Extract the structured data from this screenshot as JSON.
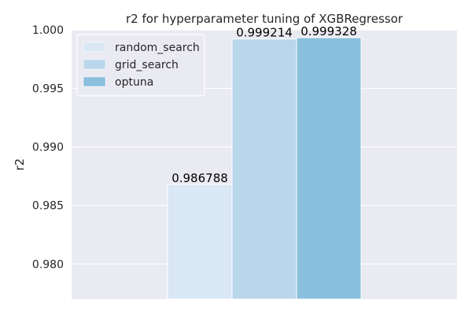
{
  "chart_data": {
    "type": "bar",
    "title": "r2 for hyperparameter tuning of XGBRegressor",
    "xlabel": "",
    "ylabel": "r2",
    "ylim": [
      0.977,
      1.0
    ],
    "yticks": [
      0.98,
      0.985,
      0.99,
      0.995,
      1.0
    ],
    "ytick_labels": [
      "0.980",
      "0.985",
      "0.990",
      "0.995",
      "1.000"
    ],
    "grid": true,
    "legend_position": "upper-left",
    "background": "#eaeaf2",
    "series": [
      {
        "name": "random_search",
        "value": 0.986788,
        "label": "0.986788",
        "color": "#dae7f4"
      },
      {
        "name": "grid_search",
        "value": 0.999214,
        "label": "0.999214",
        "color": "#b9d6eb"
      },
      {
        "name": "optuna",
        "value": 0.999328,
        "label": "0.999328",
        "color": "#8abfde"
      }
    ]
  }
}
